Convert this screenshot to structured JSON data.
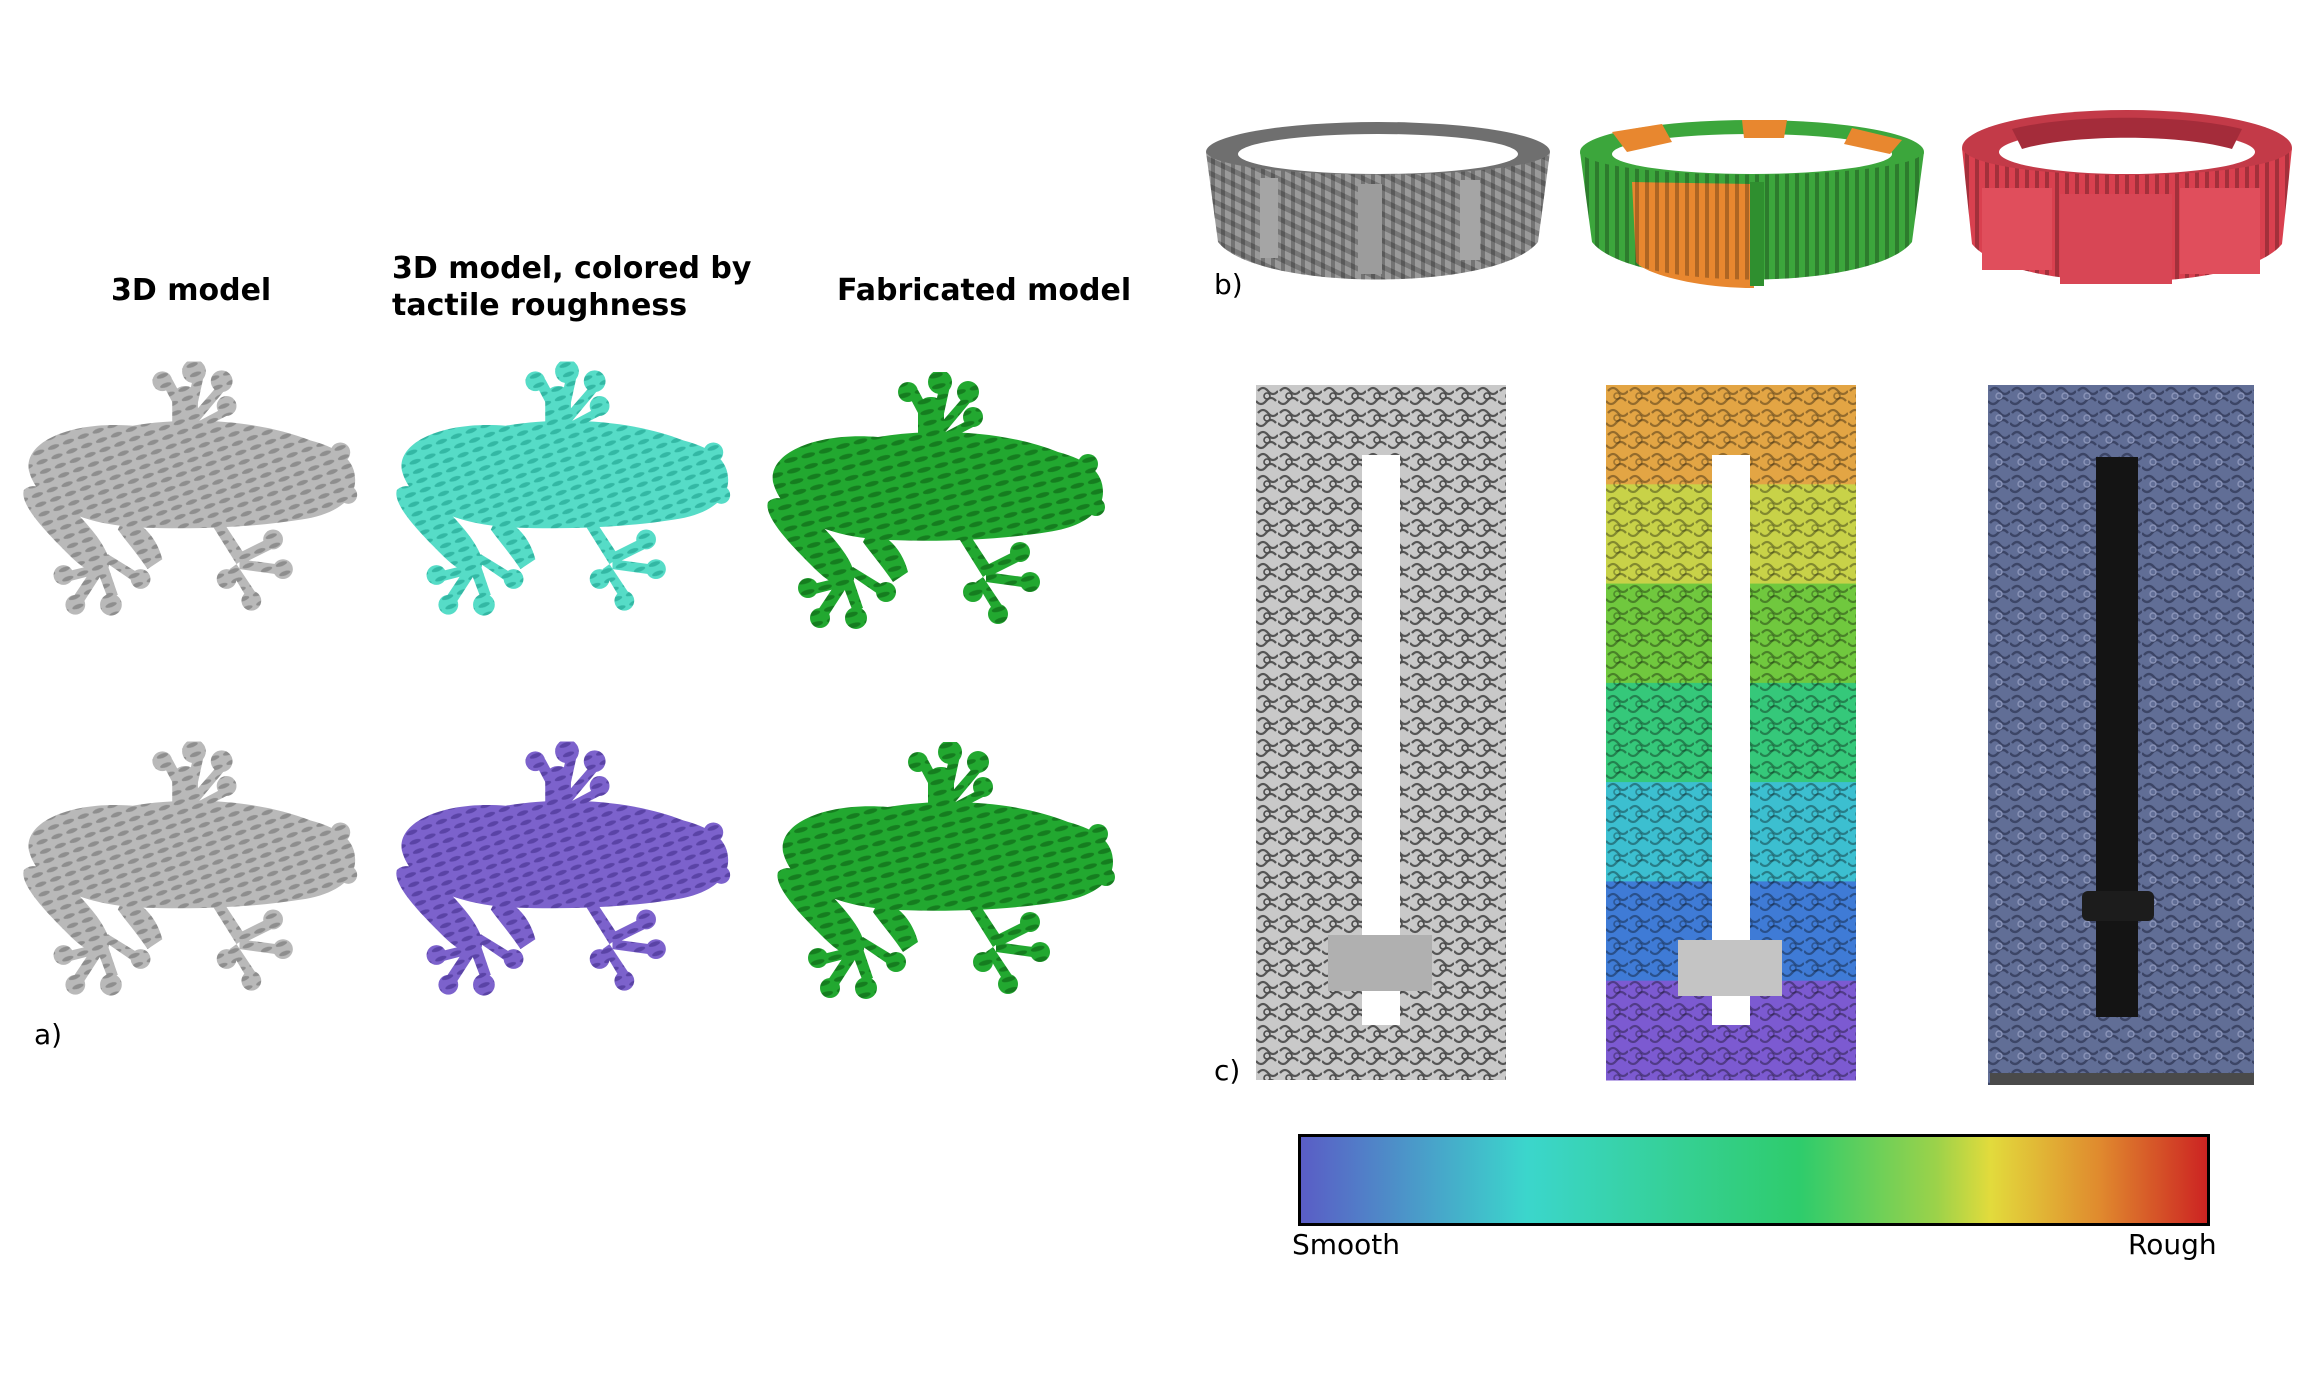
{
  "panel_a": {
    "label": "a)",
    "columns": [
      {
        "title_lines": [
          "3D model"
        ]
      },
      {
        "title_lines": [
          "3D model, colored by",
          "tactile roughness"
        ]
      },
      {
        "title_lines": [
          "Fabricated model"
        ]
      }
    ],
    "frog_colors": {
      "gray": "#b4b4b4",
      "turquoise": "#4fd8c4",
      "purple": "#7a5fc9",
      "green": "#1ea42c"
    }
  },
  "panel_b": {
    "label": "b)",
    "bracelet_colors": [
      "#a6a6a6",
      "#e8872f",
      "#d9404f"
    ],
    "bracelet_accent": "#3ca63c"
  },
  "panel_c": {
    "label": "c)",
    "slider_band_colors": [
      "#e3a544",
      "#c8d248",
      "#70c83e",
      "#35c87a",
      "#3cbfd0",
      "#3f7bd6",
      "#7c5ad1"
    ],
    "slider_gray": "#a0a0a0",
    "fabricated_color": "#5d6a93"
  },
  "colorbar": {
    "min_label": "Smooth",
    "max_label": "Rough",
    "stops": [
      "#5a5cc6",
      "#3bbbd0",
      "#3bd6b0",
      "#2ecc6c",
      "#9bd24a",
      "#e2db3c",
      "#e08a2e",
      "#cc2222"
    ]
  }
}
